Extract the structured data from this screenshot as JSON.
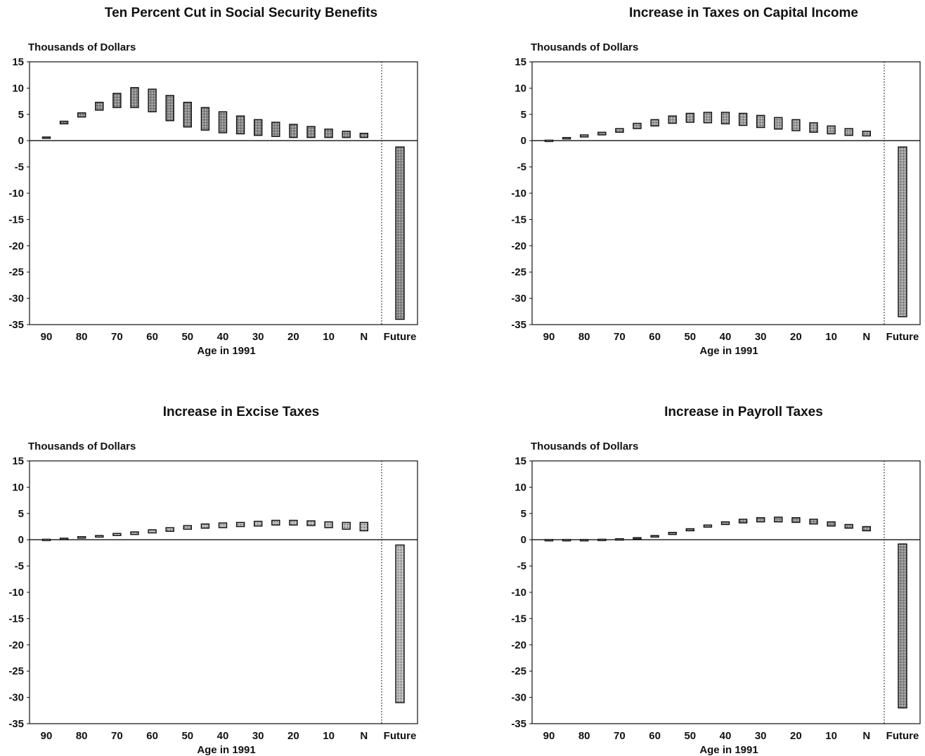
{
  "chart_data": [
    {
      "type": "bar",
      "title": "Ten Percent Cut in Social Security Benefits",
      "ylabel": "Thousands of Dollars",
      "xlabel": "Age in 1991",
      "ylim": [
        -35,
        15
      ],
      "yticks": [
        15,
        10,
        5,
        0,
        -5,
        -10,
        -15,
        -20,
        -25,
        -30,
        -35
      ],
      "categories": [
        "90",
        "85",
        "80",
        "75",
        "70",
        "65",
        "60",
        "55",
        "50",
        "45",
        "40",
        "35",
        "30",
        "25",
        "20",
        "15",
        "10",
        "5",
        "N",
        "Future"
      ],
      "tick_labels": [
        "90",
        "80",
        "70",
        "60",
        "50",
        "40",
        "30",
        "20",
        "10",
        "N",
        "Future"
      ],
      "series": [
        {
          "low": [
            0.5,
            3.2,
            4.5,
            5.8,
            6.3,
            6.3,
            5.5,
            3.8,
            2.6,
            2.0,
            1.5,
            1.3,
            1.0,
            0.8,
            0.6,
            0.6,
            0.6,
            0.6,
            0.6,
            -34
          ],
          "high": [
            0.7,
            3.7,
            5.3,
            7.3,
            9.0,
            10.1,
            9.8,
            8.6,
            7.3,
            6.3,
            5.5,
            4.7,
            4.0,
            3.5,
            3.1,
            2.7,
            2.2,
            1.8,
            1.4,
            -1.2
          ]
        }
      ]
    },
    {
      "type": "bar",
      "title": "Increase in Taxes on Capital Income",
      "ylabel": "Thousands of Dollars",
      "xlabel": "Age in 1991",
      "ylim": [
        -35,
        15
      ],
      "yticks": [
        15,
        10,
        5,
        0,
        -5,
        -10,
        -15,
        -20,
        -25,
        -30,
        -35
      ],
      "categories": [
        "90",
        "85",
        "80",
        "75",
        "70",
        "65",
        "60",
        "55",
        "50",
        "45",
        "40",
        "35",
        "30",
        "25",
        "20",
        "15",
        "10",
        "5",
        "N",
        "Future"
      ],
      "tick_labels": [
        "90",
        "80",
        "70",
        "60",
        "50",
        "40",
        "30",
        "20",
        "10",
        "N",
        "Future"
      ],
      "series": [
        {
          "low": [
            0.0,
            0.4,
            0.7,
            1.1,
            1.6,
            2.3,
            2.8,
            3.3,
            3.5,
            3.4,
            3.2,
            2.9,
            2.5,
            2.2,
            1.9,
            1.6,
            1.3,
            1.0,
            0.9,
            -33.5
          ],
          "high": [
            0.1,
            0.6,
            1.1,
            1.6,
            2.3,
            3.3,
            4.0,
            4.7,
            5.2,
            5.4,
            5.4,
            5.2,
            4.8,
            4.4,
            4.0,
            3.4,
            2.8,
            2.3,
            1.8,
            -1.2
          ]
        }
      ]
    },
    {
      "type": "bar",
      "title": "Increase in Excise Taxes",
      "ylabel": "Thousands of Dollars",
      "xlabel": "Age in 1991",
      "ylim": [
        -35,
        15
      ],
      "yticks": [
        15,
        10,
        5,
        0,
        -5,
        -10,
        -15,
        -20,
        -25,
        -30,
        -35
      ],
      "categories": [
        "90",
        "85",
        "80",
        "75",
        "70",
        "65",
        "60",
        "55",
        "50",
        "45",
        "40",
        "35",
        "30",
        "25",
        "20",
        "15",
        "10",
        "5",
        "N",
        "Future"
      ],
      "tick_labels": [
        "90",
        "80",
        "70",
        "60",
        "50",
        "40",
        "30",
        "20",
        "10",
        "N",
        "Future"
      ],
      "series": [
        {
          "low": [
            0.0,
            0.1,
            0.3,
            0.5,
            0.8,
            1.0,
            1.3,
            1.6,
            2.0,
            2.2,
            2.3,
            2.5,
            2.6,
            2.8,
            2.8,
            2.7,
            2.3,
            2.0,
            1.7,
            -31
          ],
          "high": [
            0.1,
            0.3,
            0.6,
            0.8,
            1.2,
            1.5,
            1.9,
            2.3,
            2.7,
            3.0,
            3.2,
            3.3,
            3.5,
            3.7,
            3.7,
            3.6,
            3.4,
            3.3,
            3.3,
            -1.0
          ]
        }
      ]
    },
    {
      "type": "bar",
      "title": "Increase in Payroll Taxes",
      "ylabel": "Thousands of Dollars",
      "xlabel": "Age in 1991",
      "ylim": [
        -35,
        15
      ],
      "yticks": [
        15,
        10,
        5,
        0,
        -5,
        -10,
        -15,
        -20,
        -25,
        -30,
        -35
      ],
      "categories": [
        "90",
        "85",
        "80",
        "75",
        "70",
        "65",
        "60",
        "55",
        "50",
        "45",
        "40",
        "35",
        "30",
        "25",
        "20",
        "15",
        "10",
        "5",
        "N",
        "Future"
      ],
      "tick_labels": [
        "90",
        "80",
        "70",
        "60",
        "50",
        "40",
        "30",
        "20",
        "10",
        "N",
        "Future"
      ],
      "series": [
        {
          "low": [
            0.0,
            0.0,
            0.0,
            0.0,
            0.05,
            0.2,
            0.5,
            1.0,
            1.7,
            2.4,
            2.9,
            3.2,
            3.4,
            3.4,
            3.3,
            3.0,
            2.6,
            2.2,
            1.7,
            -32
          ],
          "high": [
            0.05,
            0.05,
            0.05,
            0.1,
            0.2,
            0.4,
            0.8,
            1.4,
            2.1,
            2.8,
            3.4,
            3.9,
            4.2,
            4.3,
            4.2,
            3.9,
            3.4,
            2.9,
            2.5,
            -0.8
          ]
        }
      ]
    }
  ]
}
